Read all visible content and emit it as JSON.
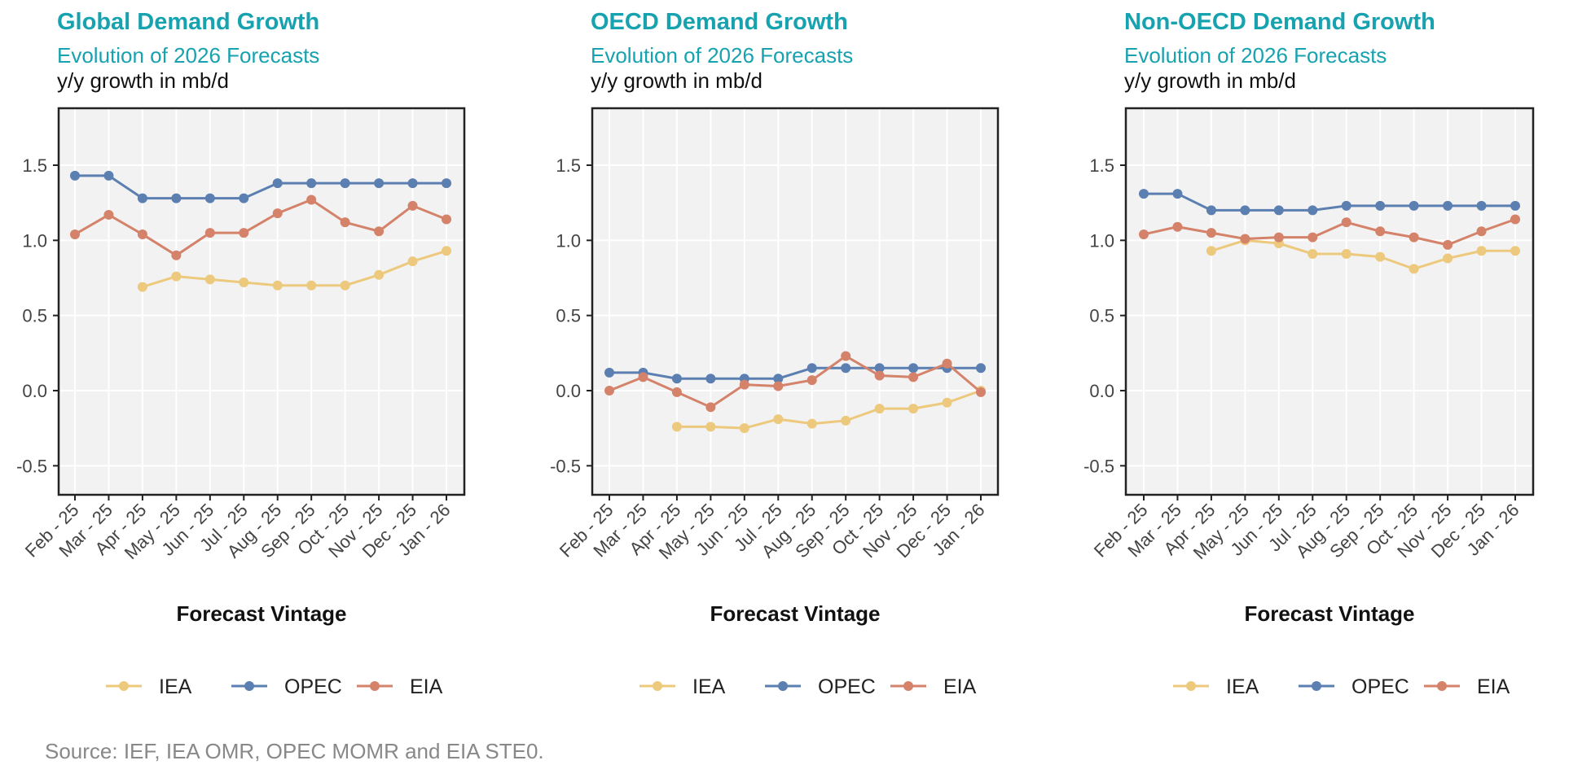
{
  "colors": {
    "title": "#17a2b0",
    "IEA": "#ecc97d",
    "OPEC": "#5b7fb0",
    "EIA": "#d4826a",
    "panel": "#f2f2f2"
  },
  "source": "Source: IEF, IEA OMR, OPEC MOMR and EIA STE0.",
  "chart_data": [
    {
      "type": "line",
      "title": "Global Demand Growth",
      "subtitle": "Evolution of 2026 Forecasts",
      "ylabel": "y/y growth in mb/d",
      "xlabel": "Forecast Vintage",
      "categories": [
        "Feb - 25",
        "Mar - 25",
        "Apr - 25",
        "May - 25",
        "Jun - 25",
        "Jul - 25",
        "Aug - 25",
        "Sep - 25",
        "Oct - 25",
        "Nov - 25",
        "Dec - 25",
        "Jan - 26"
      ],
      "yticks": [
        -0.5,
        0.0,
        0.5,
        1.0,
        1.5
      ],
      "ytick_labels": [
        "-0.5",
        "0.0",
        "0.5",
        "1.0",
        "1.5"
      ],
      "ylim": [
        -0.7,
        1.85
      ],
      "grid": true,
      "legend": "bottom",
      "series": [
        {
          "name": "IEA",
          "values": [
            null,
            null,
            0.69,
            0.76,
            0.74,
            0.72,
            0.7,
            0.7,
            0.7,
            0.77,
            0.86,
            0.93
          ]
        },
        {
          "name": "OPEC",
          "values": [
            1.43,
            1.43,
            1.28,
            1.28,
            1.28,
            1.28,
            1.38,
            1.38,
            1.38,
            1.38,
            1.38,
            1.38
          ]
        },
        {
          "name": "EIA",
          "values": [
            1.04,
            1.17,
            1.04,
            0.9,
            1.05,
            1.05,
            1.18,
            1.27,
            1.12,
            1.06,
            1.23,
            1.14
          ]
        }
      ]
    },
    {
      "type": "line",
      "title": "OECD Demand Growth",
      "subtitle": "Evolution of 2026 Forecasts",
      "ylabel": "y/y growth in mb/d",
      "xlabel": "Forecast Vintage",
      "categories": [
        "Feb - 25",
        "Mar - 25",
        "Apr - 25",
        "May - 25",
        "Jun - 25",
        "Jul - 25",
        "Aug - 25",
        "Sep - 25",
        "Oct - 25",
        "Nov - 25",
        "Dec - 25",
        "Jan - 26"
      ],
      "yticks": [
        -0.5,
        0.0,
        0.5,
        1.0,
        1.5
      ],
      "ytick_labels": [
        "-0.5",
        "0.0",
        "0.5",
        "1.0",
        "1.5"
      ],
      "ylim": [
        -0.7,
        1.85
      ],
      "grid": true,
      "legend": "bottom",
      "series": [
        {
          "name": "IEA",
          "values": [
            null,
            null,
            -0.24,
            -0.24,
            -0.25,
            -0.19,
            -0.22,
            -0.2,
            -0.12,
            -0.12,
            -0.08,
            0.0
          ]
        },
        {
          "name": "OPEC",
          "values": [
            0.12,
            0.12,
            0.08,
            0.08,
            0.08,
            0.08,
            0.15,
            0.15,
            0.15,
            0.15,
            0.15,
            0.15
          ]
        },
        {
          "name": "EIA",
          "values": [
            0.0,
            0.09,
            -0.01,
            -0.11,
            0.04,
            0.03,
            0.07,
            0.23,
            0.1,
            0.09,
            0.18,
            -0.01
          ]
        }
      ]
    },
    {
      "type": "line",
      "title": "Non-OECD Demand Growth",
      "subtitle": "Evolution of 2026 Forecasts",
      "ylabel": "y/y growth in mb/d",
      "xlabel": "Forecast Vintage",
      "categories": [
        "Feb - 25",
        "Mar - 25",
        "Apr - 25",
        "May - 25",
        "Jun - 25",
        "Jul - 25",
        "Aug - 25",
        "Sep - 25",
        "Oct - 25",
        "Nov - 25",
        "Dec - 25",
        "Jan - 26"
      ],
      "yticks": [
        -0.5,
        0.0,
        0.5,
        1.0,
        1.5
      ],
      "ytick_labels": [
        "-0.5",
        "0.0",
        "0.5",
        "1.0",
        "1.5"
      ],
      "ylim": [
        -0.7,
        1.85
      ],
      "grid": true,
      "legend": "bottom",
      "series": [
        {
          "name": "IEA",
          "values": [
            null,
            null,
            0.93,
            1.0,
            0.98,
            0.91,
            0.91,
            0.89,
            0.81,
            0.88,
            0.93,
            0.93
          ]
        },
        {
          "name": "OPEC",
          "values": [
            1.31,
            1.31,
            1.2,
            1.2,
            1.2,
            1.2,
            1.23,
            1.23,
            1.23,
            1.23,
            1.23,
            1.23
          ]
        },
        {
          "name": "EIA",
          "values": [
            1.04,
            1.09,
            1.05,
            1.01,
            1.02,
            1.02,
            1.12,
            1.06,
            1.02,
            0.97,
            1.06,
            1.14
          ]
        }
      ]
    }
  ]
}
